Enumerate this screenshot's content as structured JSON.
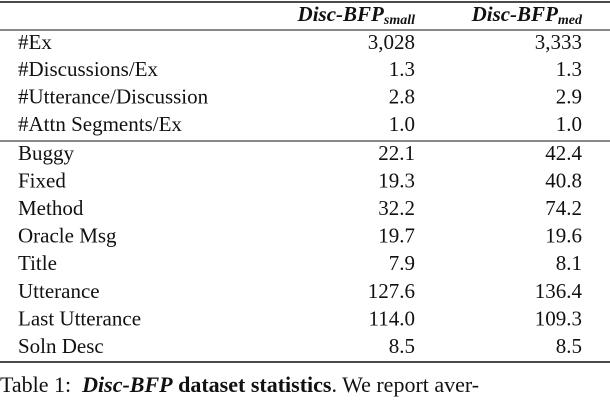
{
  "table": {
    "columns": [
      {
        "name": "Disc-BFP",
        "subscript": "small"
      },
      {
        "name": "Disc-BFP",
        "subscript": "med"
      }
    ],
    "groups": [
      [
        [
          "#Ex",
          "3,028",
          "3,333"
        ],
        [
          "#Discussions/Ex",
          "1.3",
          "1.3"
        ],
        [
          "#Utterance/Discussion",
          "2.8",
          "2.9"
        ],
        [
          "#Attn Segments/Ex",
          "1.0",
          "1.0"
        ]
      ],
      [
        [
          "Buggy",
          "22.1",
          "42.4"
        ],
        [
          "Fixed",
          "19.3",
          "40.8"
        ],
        [
          "Method",
          "32.2",
          "74.2"
        ],
        [
          "Oracle Msg",
          "19.7",
          "19.6"
        ],
        [
          "Title",
          "7.9",
          "8.1"
        ],
        [
          "Utterance",
          "127.6",
          "136.4"
        ],
        [
          "Last Utterance",
          "114.0",
          "109.3"
        ],
        [
          "Soln Desc",
          "8.5",
          "8.5"
        ]
      ]
    ]
  },
  "caption": {
    "label": "Table 1:",
    "name": "Disc-BFP",
    "emphasis": "dataset statistics",
    "rest": ". We report aver-"
  }
}
